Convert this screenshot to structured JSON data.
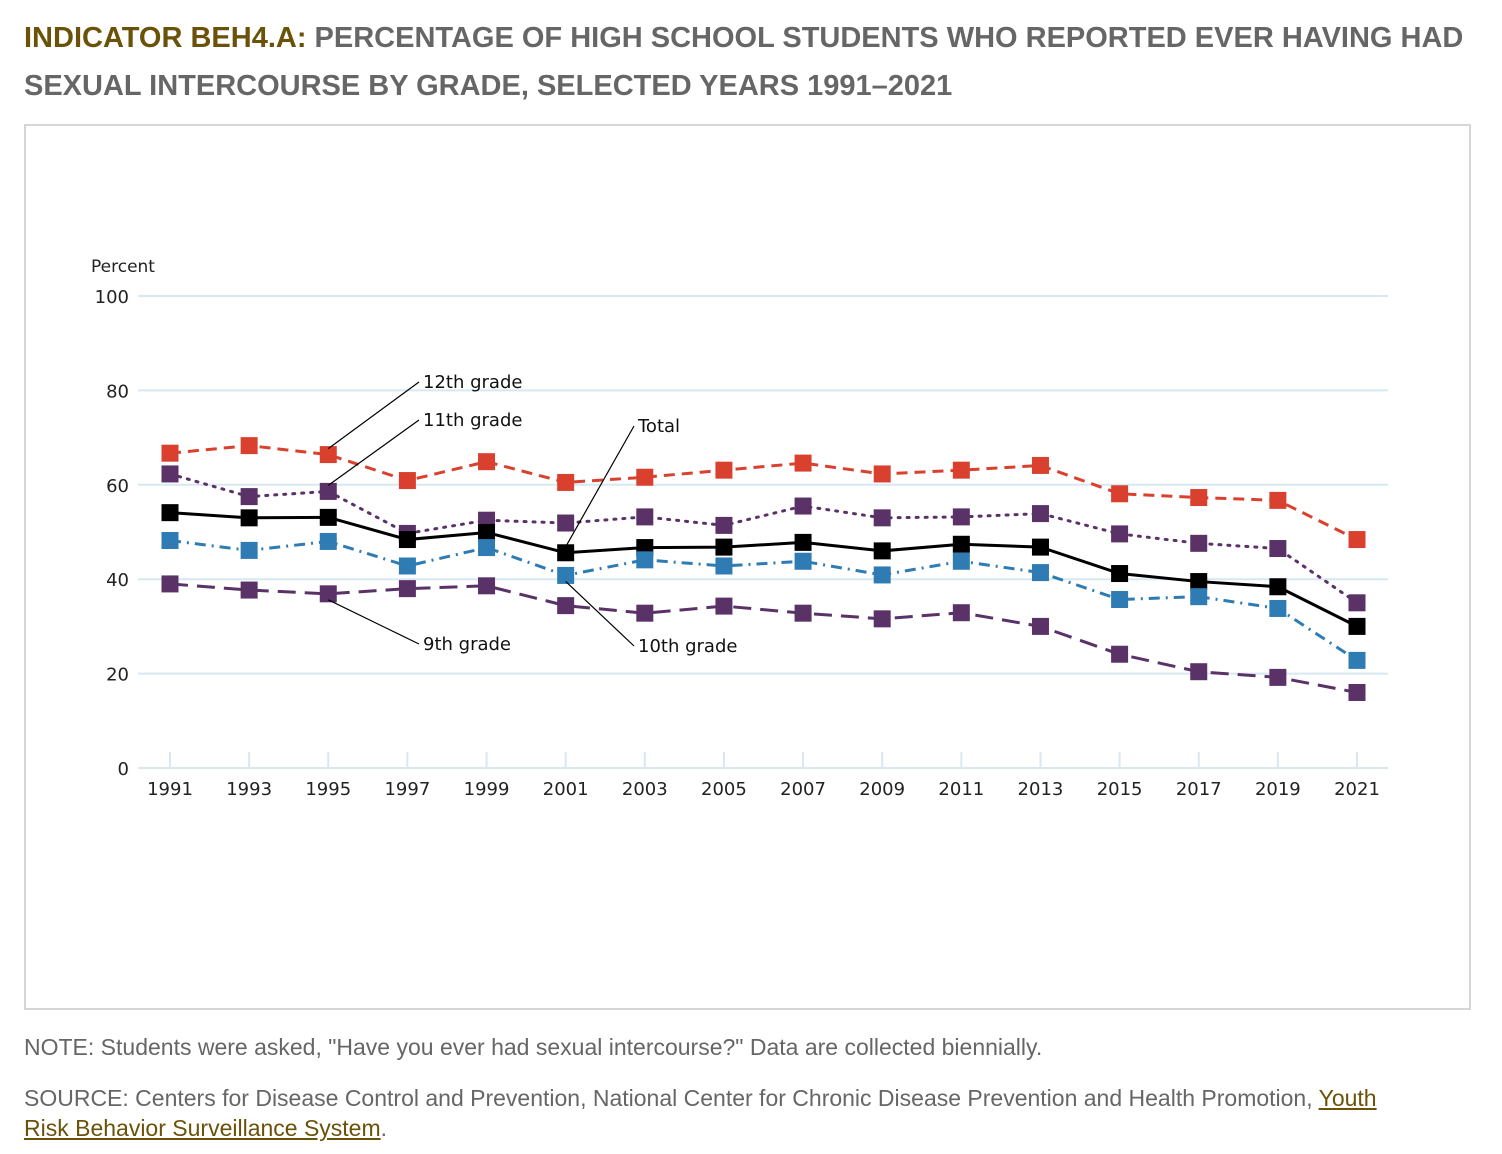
{
  "header": {
    "indicator": "INDICATOR BEH4.A:",
    "title": " PERCENTAGE OF HIGH SCHOOL STUDENTS WHO REPORTED EVER HAVING HAD SEXUAL INTERCOURSE BY GRADE, SELECTED YEARS 1991–2021"
  },
  "footer": {
    "note": "NOTE: Students were asked, \"Have you ever had sexual intercourse?\" Data are collected biennially.",
    "source_prefix": "SOURCE: Centers for Disease Control and Prevention, National Center for Chronic Disease Prevention and Health Promotion, ",
    "source_link": "Youth Risk Behavior Surveillance System",
    "source_suffix": "."
  },
  "chart_data": {
    "type": "line",
    "ylabel": "Percent",
    "ylim": [
      0,
      100
    ],
    "yticks": [
      0,
      20,
      40,
      60,
      80,
      100
    ],
    "grid": true,
    "x": [
      "1991",
      "1993",
      "1995",
      "1997",
      "1999",
      "2001",
      "2003",
      "2005",
      "2007",
      "2009",
      "2011",
      "2013",
      "2015",
      "2017",
      "2019",
      "2021"
    ],
    "series": [
      {
        "name": "12th grade",
        "style": "dashed",
        "color": "#d9412e",
        "values": [
          66.7,
          68.3,
          66.4,
          60.9,
          64.9,
          60.5,
          61.6,
          63.1,
          64.6,
          62.3,
          63.1,
          64.1,
          58.1,
          57.3,
          56.7,
          48.4
        ]
      },
      {
        "name": "11th grade",
        "style": "dotted",
        "color": "#5a3268",
        "values": [
          62.3,
          57.5,
          58.6,
          49.7,
          52.5,
          51.9,
          53.2,
          51.4,
          55.5,
          53.0,
          53.2,
          53.9,
          49.6,
          47.6,
          46.5,
          35.0
        ]
      },
      {
        "name": "Total",
        "style": "solid",
        "color": "#000000",
        "values": [
          54.1,
          53.0,
          53.1,
          48.4,
          49.9,
          45.6,
          46.7,
          46.8,
          47.8,
          46.0,
          47.4,
          46.8,
          41.2,
          39.5,
          38.4,
          30.0
        ]
      },
      {
        "name": "10th grade",
        "style": "dashdot",
        "color": "#2e7cb3",
        "values": [
          48.2,
          46.1,
          48.0,
          42.8,
          46.7,
          40.8,
          44.1,
          42.8,
          43.8,
          40.9,
          43.8,
          41.4,
          35.7,
          36.3,
          33.8,
          22.8
        ]
      },
      {
        "name": "9th grade",
        "style": "longdash",
        "color": "#5a3268",
        "values": [
          39.0,
          37.7,
          36.9,
          38.0,
          38.6,
          34.4,
          32.8,
          34.3,
          32.8,
          31.6,
          32.9,
          30.0,
          24.1,
          20.4,
          19.2,
          16.0
        ]
      }
    ],
    "annotations": [
      "12th grade",
      "11th grade",
      "Total",
      "9th grade",
      "10th grade"
    ]
  }
}
